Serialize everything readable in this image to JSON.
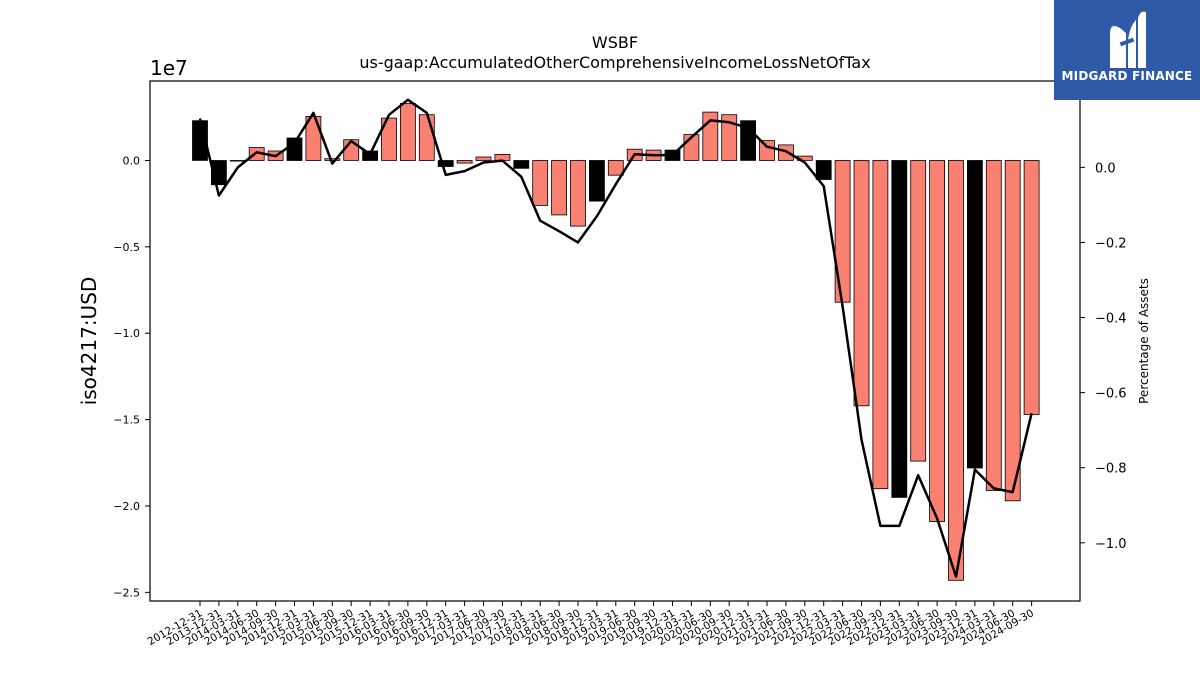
{
  "logo": {
    "text": "MIDGARD FINANCE",
    "icon": "midgard-m-logo-icon"
  },
  "chart_data": {
    "type": "bar",
    "title": "WSBF",
    "subtitle": "us-gaap:AccumulatedOtherComprehensiveIncomeLossNetOfTax",
    "ylabel": "iso4217:USD",
    "y_offset_label": "1e7",
    "y2label": "Percentage of Assets",
    "ylim": [
      -2.55,
      0.46
    ],
    "y2lim": [
      -1.155,
      0.23
    ],
    "yticks": [
      -2.5,
      -2.0,
      -1.5,
      -1.0,
      -0.5,
      0.0
    ],
    "ytick_labels": [
      "−2.5",
      "−2.0",
      "−1.5",
      "−1.0",
      "−0.5",
      "0.0"
    ],
    "y2ticks": [
      -1.0,
      -0.8,
      -0.6,
      -0.4,
      -0.2,
      0.0,
      0.2
    ],
    "y2tick_labels": [
      "−1.0",
      "−0.8",
      "−0.6",
      "−0.4",
      "−0.2",
      "0.0",
      "0.2"
    ],
    "grid": false,
    "colors": {
      "q4": "#000000",
      "other": "#fa8072",
      "line": "#000000"
    },
    "categories": [
      "2012-12-31",
      "2013-12-31",
      "2014-03-31",
      "2014-06-30",
      "2014-09-30",
      "2014-12-31",
      "2015-03-31",
      "2015-06-30",
      "2015-09-30",
      "2015-12-31",
      "2016-03-31",
      "2016-06-30",
      "2016-09-30",
      "2016-12-31",
      "2017-03-31",
      "2017-06-30",
      "2017-09-30",
      "2017-12-31",
      "2018-03-31",
      "2018-06-30",
      "2018-09-30",
      "2018-12-31",
      "2019-03-31",
      "2019-06-30",
      "2019-09-30",
      "2019-12-31",
      "2020-03-31",
      "2020-06-30",
      "2020-09-30",
      "2020-12-31",
      "2021-03-31",
      "2021-06-30",
      "2021-09-30",
      "2021-12-31",
      "2022-03-31",
      "2022-06-30",
      "2022-09-30",
      "2022-12-31",
      "2023-03-31",
      "2023-06-30",
      "2023-09-30",
      "2023-12-31",
      "2024-03-31",
      "2024-06-30",
      "2024-09-30"
    ],
    "series": [
      {
        "values": [
          0.23,
          -0.14,
          0.0,
          0.075,
          0.055,
          0.13,
          0.255,
          0.01,
          0.12,
          0.055,
          0.245,
          0.33,
          0.265,
          -0.035,
          -0.015,
          0.02,
          0.035,
          -0.045,
          -0.26,
          -0.315,
          -0.38,
          -0.235,
          -0.085,
          0.065,
          0.06,
          0.06,
          0.15,
          0.28,
          0.265,
          0.23,
          0.115,
          0.09,
          0.025,
          -0.11,
          -0.82,
          -1.42,
          -1.9,
          -1.95,
          -1.74,
          -2.09,
          -2.43,
          -1.78,
          -1.91,
          -1.97,
          -1.47
        ]
      },
      {
        "values": [
          0.13,
          -0.075,
          0.0,
          0.04,
          0.03,
          0.065,
          0.145,
          0.01,
          0.07,
          0.035,
          0.14,
          0.18,
          0.145,
          -0.02,
          -0.01,
          0.013,
          0.018,
          -0.025,
          -0.142,
          -0.17,
          -0.2,
          -0.13,
          -0.045,
          0.035,
          0.032,
          0.033,
          0.08,
          0.125,
          0.12,
          0.105,
          0.055,
          0.043,
          0.013,
          -0.05,
          -0.37,
          -0.725,
          -0.955,
          -0.955,
          -0.82,
          -0.935,
          -1.09,
          -0.805,
          -0.855,
          -0.865,
          -0.655
        ]
      }
    ]
  }
}
